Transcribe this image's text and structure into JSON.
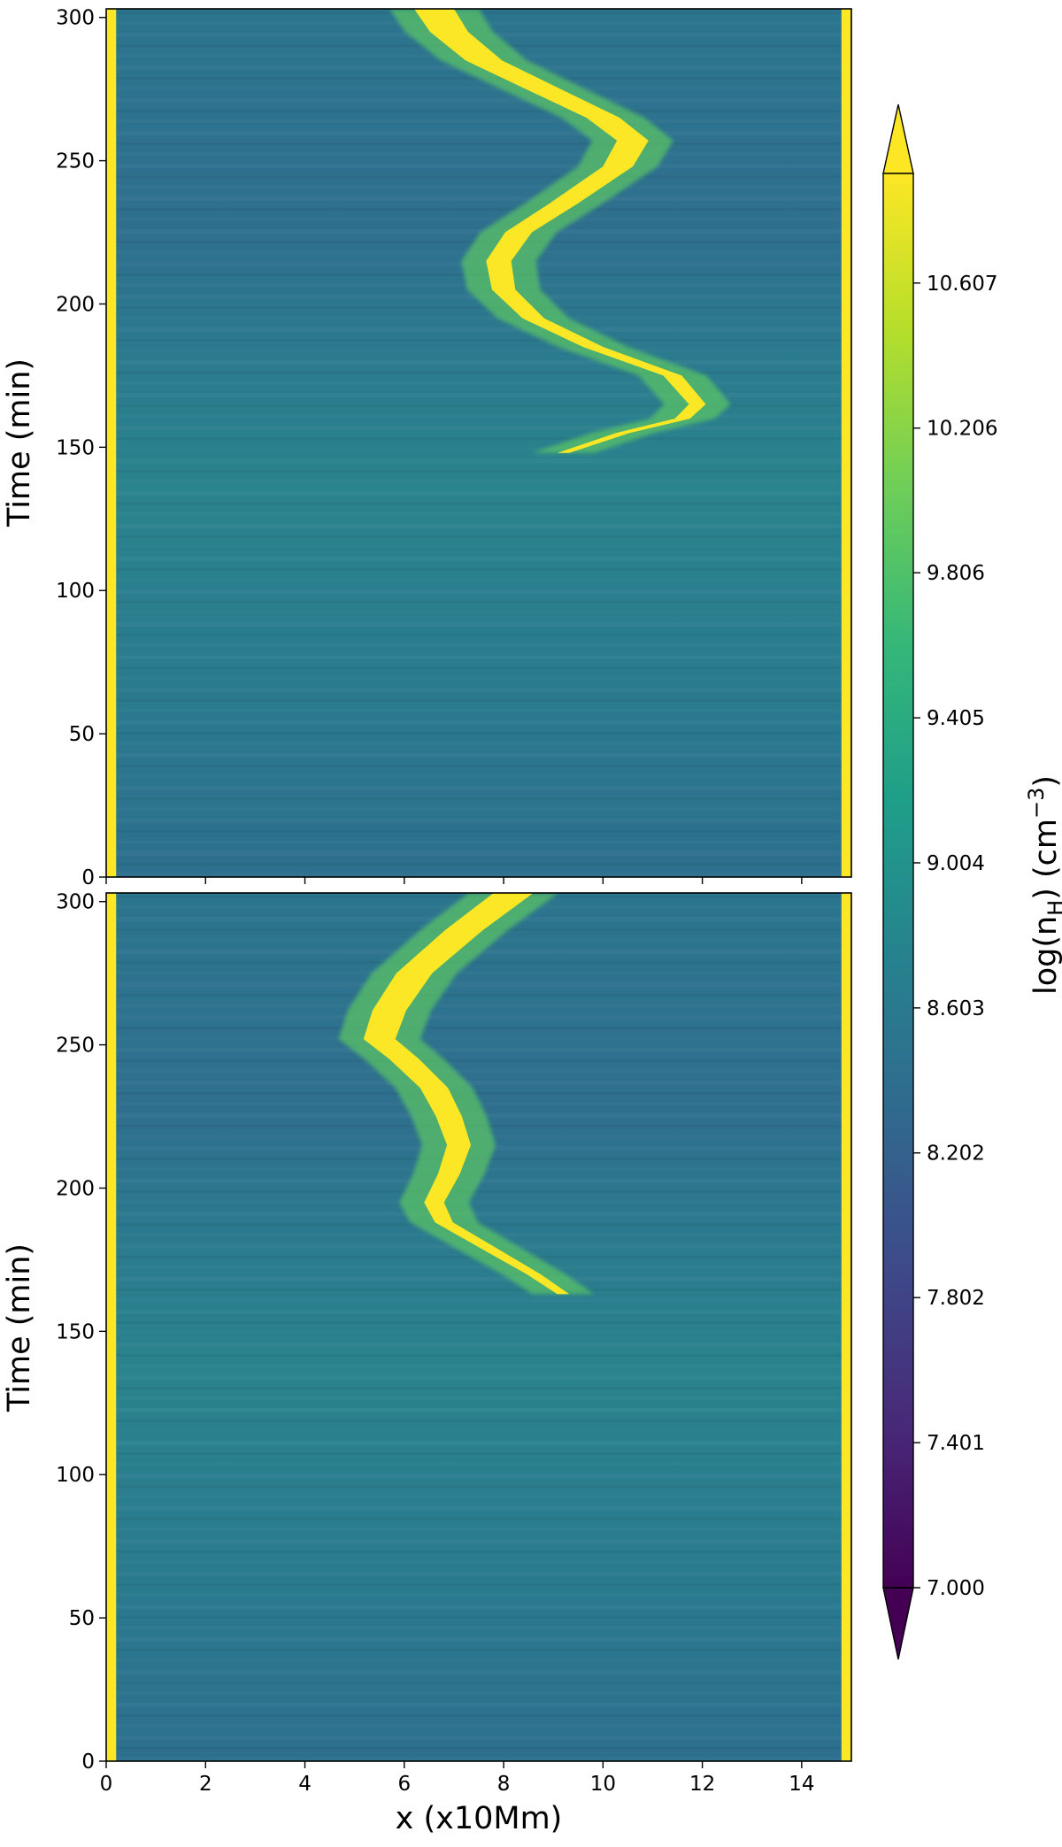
{
  "chart_data": {
    "type": "heatmap",
    "xlabel": "x (x10Mm)",
    "x_ticks": [
      0,
      2,
      4,
      6,
      8,
      10,
      12,
      14
    ],
    "xlim": [
      0,
      15
    ],
    "colorbar": {
      "label": "log(n_H) (cm^-3)",
      "label_parts": {
        "base": "log(n",
        "sub": "H",
        "mid": ") (cm",
        "sup": "−3",
        "end": ")"
      },
      "ticks": [
        "7.000",
        "7.401",
        "7.802",
        "8.202",
        "8.603",
        "9.004",
        "9.405",
        "9.806",
        "10.206",
        "10.607"
      ],
      "range": [
        7.0,
        10.91
      ],
      "extend": "both",
      "colormap": "viridis",
      "colors": [
        "#440154",
        "#482878",
        "#3e4989",
        "#31688e",
        "#26828e",
        "#1f9e89",
        "#35b779",
        "#6ece58",
        "#b5de2b",
        "#fde725"
      ]
    },
    "panels": [
      {
        "ylabel": "Time (min)",
        "y_ticks": [
          0,
          50,
          100,
          150,
          200,
          250,
          300
        ],
        "ylim": [
          0,
          303
        ],
        "background_log_nH": 9.0,
        "boundary_log_nH": 10.9,
        "feature_log_nH": 10.9,
        "feature_track": [
          {
            "t": 148,
            "x": 9.2
          },
          {
            "t": 155,
            "x": 10.4
          },
          {
            "t": 160,
            "x": 11.6
          },
          {
            "t": 165,
            "x": 11.9
          },
          {
            "t": 175,
            "x": 11.4
          },
          {
            "t": 185,
            "x": 9.8
          },
          {
            "t": 195,
            "x": 8.6
          },
          {
            "t": 205,
            "x": 8.0
          },
          {
            "t": 215,
            "x": 7.9
          },
          {
            "t": 225,
            "x": 8.3
          },
          {
            "t": 235,
            "x": 9.2
          },
          {
            "t": 248,
            "x": 10.3
          },
          {
            "t": 257,
            "x": 10.6
          },
          {
            "t": 265,
            "x": 10.0
          },
          {
            "t": 275,
            "x": 8.8
          },
          {
            "t": 285,
            "x": 7.6
          },
          {
            "t": 295,
            "x": 6.9
          },
          {
            "t": 303,
            "x": 6.6
          }
        ]
      },
      {
        "ylabel": "Time (min)",
        "y_ticks": [
          0,
          50,
          100,
          150,
          200,
          250,
          300
        ],
        "ylim": [
          0,
          303
        ],
        "background_log_nH": 8.9,
        "boundary_log_nH": 10.9,
        "feature_log_nH": 10.9,
        "feature_track": [
          {
            "t": 163,
            "x": 9.2
          },
          {
            "t": 170,
            "x": 8.6
          },
          {
            "t": 178,
            "x": 7.8
          },
          {
            "t": 188,
            "x": 6.8
          },
          {
            "t": 195,
            "x": 6.6
          },
          {
            "t": 205,
            "x": 6.9
          },
          {
            "t": 215,
            "x": 7.1
          },
          {
            "t": 225,
            "x": 6.9
          },
          {
            "t": 235,
            "x": 6.6
          },
          {
            "t": 245,
            "x": 6.0
          },
          {
            "t": 252,
            "x": 5.5
          },
          {
            "t": 262,
            "x": 5.7
          },
          {
            "t": 275,
            "x": 6.2
          },
          {
            "t": 290,
            "x": 7.2
          },
          {
            "t": 303,
            "x": 8.2
          }
        ]
      }
    ]
  }
}
